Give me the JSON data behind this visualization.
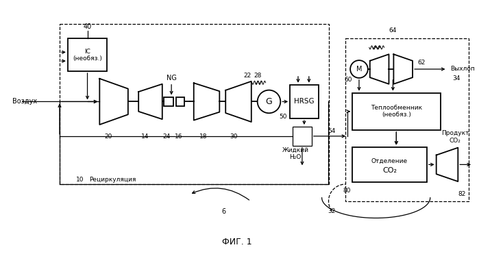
{
  "title": "ФИГ. 1",
  "bg_color": "#ffffff",
  "line_color": "#000000",
  "labels": {
    "air": "Воздух",
    "IC": "IC\n(необяз.)",
    "NG": "NG",
    "HRSG": "HRSG",
    "liquid_h2o": "Жидкий\nH₂O",
    "heat_exchanger": "Теплообменник\n(необяз.)",
    "co2_sep": "Отделение\nCO₂",
    "recirculation": "Рециркуляция",
    "exhaust": "Выхлоп",
    "product_co2": "Продукт\nCO₂",
    "G": "G",
    "M": "M"
  },
  "numbers": {
    "n6": "6",
    "n10": "10",
    "n14": "14",
    "n16": "16",
    "n18": "18",
    "n20": "20",
    "n22": "22",
    "n24": "24",
    "n28": "28",
    "n30": "30",
    "n32": "32",
    "n34": "34",
    "n40": "40",
    "n50": "50",
    "n54": "54",
    "n60": "60",
    "n62": "62",
    "n64": "64",
    "n80": "80",
    "n82": "82"
  }
}
